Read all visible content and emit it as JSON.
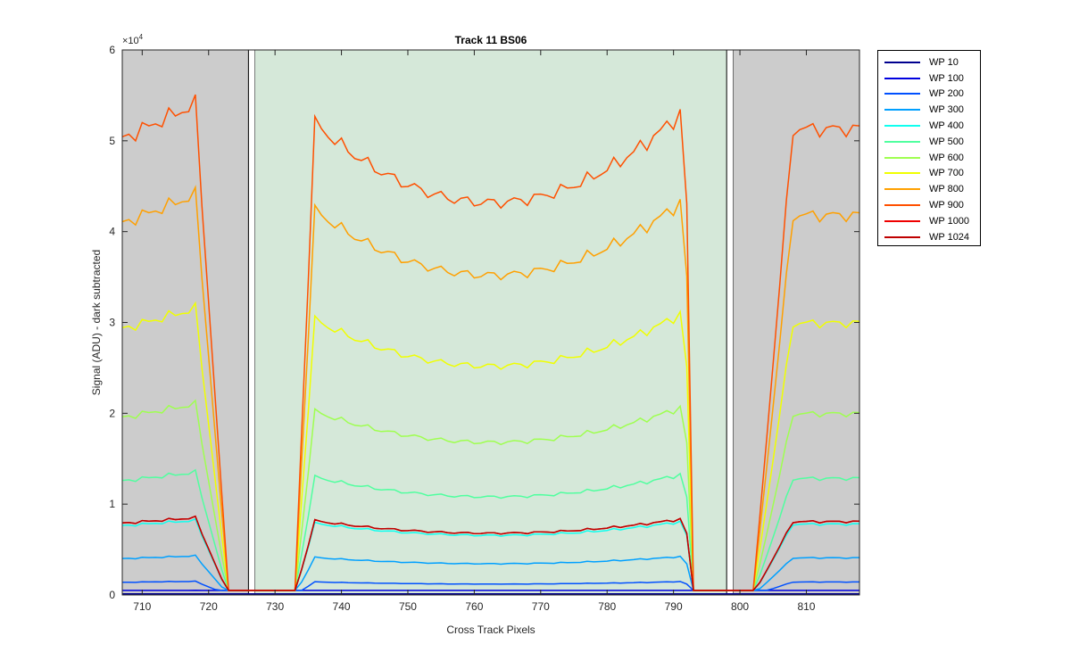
{
  "chart_data": {
    "type": "line",
    "title": "Track 11  BS06",
    "xlabel": "Cross Track Pixels",
    "ylabel": "Signal (ADU) - dark subtracted",
    "y_exponent_label": "×10",
    "y_exponent_power": "4",
    "xlim": [
      707,
      818
    ],
    "ylim": [
      0,
      60000
    ],
    "x_ticks": [
      "710",
      "720",
      "730",
      "740",
      "750",
      "760",
      "770",
      "780",
      "790",
      "800",
      "810"
    ],
    "x_tick_values": [
      710,
      720,
      730,
      740,
      750,
      760,
      770,
      780,
      790,
      800,
      810
    ],
    "y_ticks": [
      "0",
      "1",
      "2",
      "3",
      "4",
      "5",
      "6"
    ],
    "y_tick_values": [
      0,
      10000,
      20000,
      30000,
      40000,
      50000,
      60000
    ],
    "legend_placement": "outside-right",
    "shaded_regions": [
      {
        "name": "left-gray",
        "x": [
          707,
          726
        ],
        "color": "#cccccc"
      },
      {
        "name": "left-gap",
        "x": [
          726,
          727
        ],
        "color": "#ffffff"
      },
      {
        "name": "center-green",
        "x": [
          727,
          798
        ],
        "color": "#d5e8d9"
      },
      {
        "name": "right-gap",
        "x": [
          798,
          799
        ],
        "color": "#ffffff"
      },
      {
        "name": "right-gray",
        "x": [
          799,
          818
        ],
        "color": "#cccccc"
      }
    ],
    "baseline": 500,
    "series": [
      {
        "name": "WP 10",
        "color": "#00008f",
        "level": 120
      },
      {
        "name": "WP 100",
        "color": "#0000df",
        "level": 500
      },
      {
        "name": "WP 200",
        "color": "#0050ff",
        "level": 1500
      },
      {
        "name": "WP 300",
        "color": "#00a0ff",
        "level": 4300
      },
      {
        "name": "WP 400",
        "color": "#10ffef",
        "level": 8200
      },
      {
        "name": "WP 500",
        "color": "#50ff9f",
        "level": 13500
      },
      {
        "name": "WP 600",
        "color": "#9fff50",
        "level": 21000
      },
      {
        "name": "WP 700",
        "color": "#f0ff00",
        "level": 31500
      },
      {
        "name": "WP 800",
        "color": "#ffa000",
        "level": 44000
      },
      {
        "name": "WP 900",
        "color": "#ff5000",
        "level": 54000
      },
      {
        "name": "WP 1000",
        "color": "#ef0000",
        "level": 8500
      },
      {
        "name": "WP 1024",
        "color": "#bf0000",
        "level": 8500
      }
    ]
  }
}
